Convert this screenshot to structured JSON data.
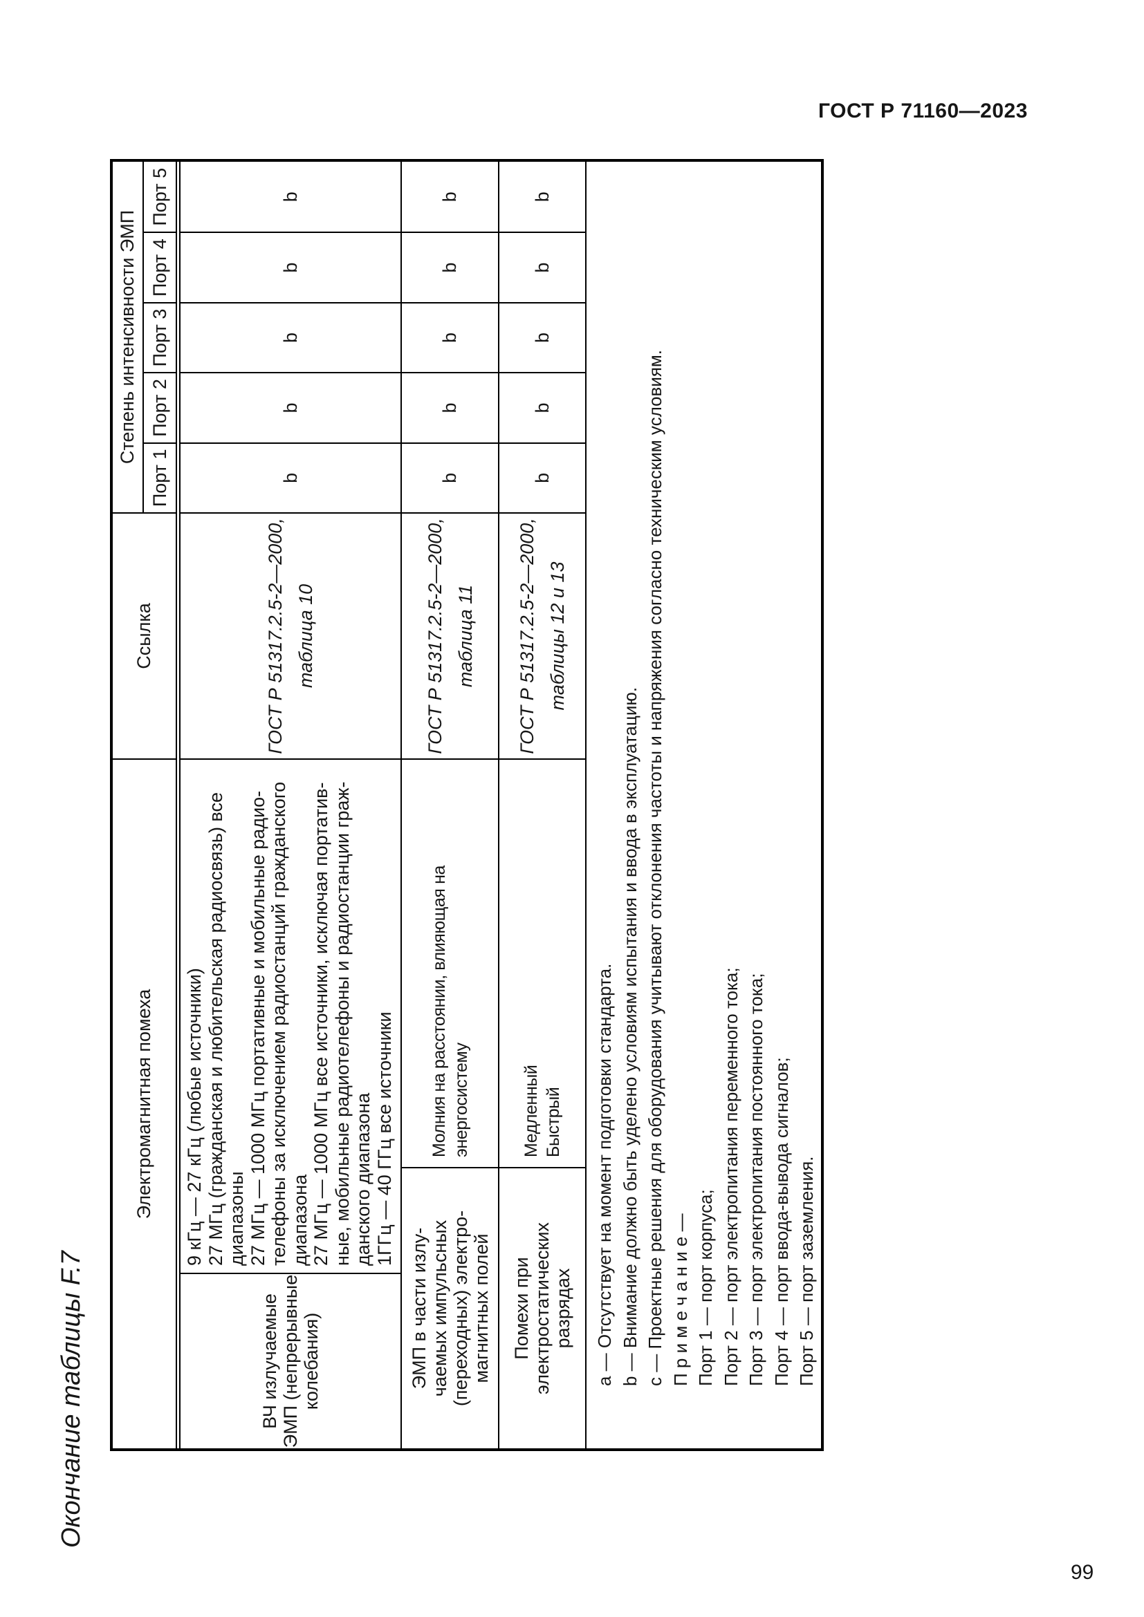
{
  "page": {
    "standard_ref": "ГОСТ Р 71160—2023",
    "page_number": "99",
    "table_caption": "Окончание таблицы F.7"
  },
  "table": {
    "headers": {
      "disturbance": "Электромагнитная помеха",
      "reference": "Ссылка",
      "intensity": "Степень интенсивности ЭМП",
      "ports": [
        "Порт 1",
        "Порт 2",
        "Порт 3",
        "Порт 4",
        "Порт 5"
      ]
    },
    "rows": [
      {
        "name": "ВЧ излучаемые\nЭМП (непрерывные\nколебания)",
        "description": "9 кГц — 27 кГц (любые источники)\n27 МГц (гражданская и любительская радиосвязь) все\nдиапазоны\n27 МГц — 1000 МГц портативные и мобильные радио-\nтелефоны за исключением радиостанций гражданского\nдиапазона\n27 МГц — 1000 МГц все источники, исключая портатив-\nные, мобильные радиотелефоны и радиостанции граж-\nданского диапазона\n1ГГц — 40 ГГц все источники",
        "reference": "ГОСТ Р 51317.2.5-2—2000,\nтаблица 10",
        "port_values": [
          "b",
          "b",
          "b",
          "b",
          "b"
        ]
      },
      {
        "name": "ЭМП в части излу-\nчаемых импульсных\n(переходных) электро-\nмагнитных полей",
        "description": "Молния на расстоянии, влияющая на энергосистему",
        "reference": "ГОСТ Р 51317.2.5-2—2000,\nтаблица 11",
        "port_values": [
          "b",
          "b",
          "b",
          "b",
          "b"
        ]
      },
      {
        "name": "Помехи при\nэлектростатических\nразрядах",
        "description": "Медленный\nБыстрый",
        "reference": "ГОСТ Р 51317.2.5-2—2000,\nтаблицы 12 и 13",
        "port_values": [
          "b",
          "b",
          "b",
          "b",
          "b"
        ]
      }
    ],
    "footnotes": [
      "a — Отсутствует на момент подготовки стандарта.",
      "b — Внимание должно быть уделено условиям испытания и ввода в эксплуатацию.",
      "c — Проектные решения для оборудования учитывают отклонения частоты и напряжения согласно техническим условиям.",
      "П р и м е ч а н и е —",
      "Порт 1 — порт корпуса;",
      "Порт 2 — порт электропитания переменного тока;",
      "Порт 3 — порт электропитания постоянного тока;",
      "Порт 4 — порт ввода-вывода сигналов;",
      "Порт 5 — порт заземления."
    ]
  }
}
